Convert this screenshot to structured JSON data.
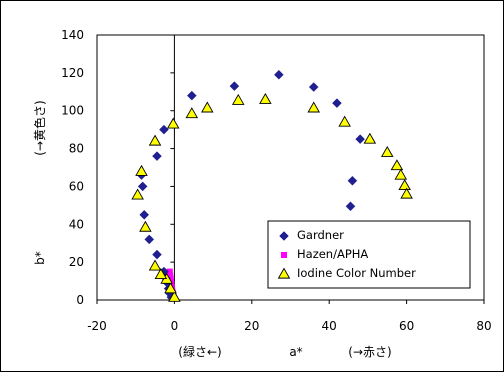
{
  "chart_data": {
    "type": "scatter",
    "xlim": [
      -20,
      80
    ],
    "ylim": [
      0,
      140
    ],
    "x_ticks": [
      -20,
      0,
      20,
      40,
      60,
      80
    ],
    "y_ticks": [
      0,
      20,
      40,
      60,
      80,
      100,
      120,
      140
    ],
    "grid": false,
    "legend_position": "lower-right",
    "xlabel": {
      "left": "(緑さ←)",
      "center": "a*",
      "right": "(→赤さ)"
    },
    "ylabel": {
      "name": "b*",
      "direction": "(→黄色さ)"
    },
    "series": [
      {
        "name": "Gardner",
        "marker": "diamond",
        "color": "#1F1F8F",
        "points": [
          [
            -0.8,
            1.5
          ],
          [
            -1.2,
            3.5
          ],
          [
            -1.5,
            6
          ],
          [
            -1.8,
            9
          ],
          [
            -2.2,
            11.5
          ],
          [
            -2.7,
            15
          ],
          [
            -4.5,
            24
          ],
          [
            -6.5,
            32
          ],
          [
            -7.8,
            45
          ],
          [
            -8.2,
            60
          ],
          [
            -8.5,
            66
          ],
          [
            -4.5,
            76
          ],
          [
            -2.7,
            90
          ],
          [
            4.5,
            108
          ],
          [
            15.5,
            113
          ],
          [
            27,
            119
          ],
          [
            36,
            112.5
          ],
          [
            42,
            104
          ],
          [
            48,
            85
          ],
          [
            46,
            63
          ],
          [
            45.5,
            49.5
          ]
        ]
      },
      {
        "name": "Hazen/APHA",
        "marker": "square",
        "color": "#FF00FF",
        "points": [
          [
            -1.2,
            15
          ],
          [
            -1.1,
            13
          ],
          [
            -1.0,
            11.5
          ],
          [
            -0.9,
            10
          ],
          [
            -0.8,
            8.5
          ],
          [
            -0.7,
            7
          ],
          [
            -0.6,
            5.5
          ],
          [
            -0.5,
            4.5
          ],
          [
            -0.4,
            3.5
          ],
          [
            -0.3,
            2.5
          ],
          [
            -0.2,
            1.5
          ],
          [
            -0.1,
            0.8
          ]
        ]
      },
      {
        "name": "Iodine Color Number",
        "marker": "triangle",
        "color": "#FFFF00",
        "points": [
          [
            0,
            1.5
          ],
          [
            -1,
            6
          ],
          [
            -2,
            11
          ],
          [
            -3.5,
            13.5
          ],
          [
            -5,
            18
          ],
          [
            -7.5,
            38.5
          ],
          [
            -9.5,
            55.5
          ],
          [
            -8.5,
            68
          ],
          [
            -5,
            84
          ],
          [
            -0.3,
            93
          ],
          [
            4.5,
            98.5
          ],
          [
            8.5,
            101.5
          ],
          [
            16.5,
            105.5
          ],
          [
            23.5,
            106
          ],
          [
            36,
            101.5
          ],
          [
            44,
            94
          ],
          [
            50.5,
            85
          ],
          [
            55,
            78
          ],
          [
            57.5,
            71
          ],
          [
            58.5,
            66
          ],
          [
            59.5,
            60.5
          ],
          [
            60,
            56
          ]
        ]
      }
    ]
  }
}
